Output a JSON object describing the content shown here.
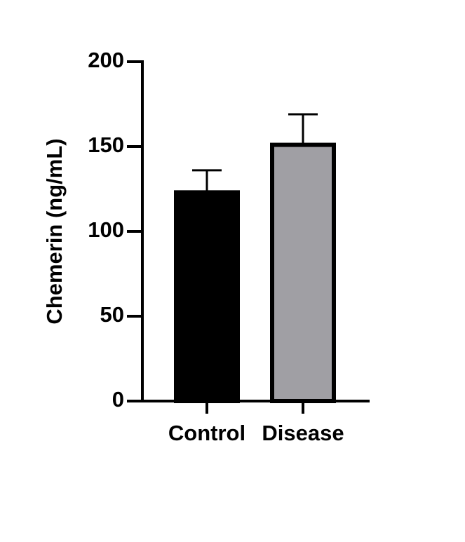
{
  "chart_data": {
    "type": "bar",
    "y_label": "Chemerin (ng/mL)",
    "categories": [
      "Control",
      "Disease"
    ],
    "values": [
      123,
      151
    ],
    "errors": [
      13,
      18
    ],
    "colors": [
      "#000000",
      "#a09fa4"
    ],
    "ylim": [
      0,
      200
    ],
    "yticks": [
      0,
      50,
      100,
      150,
      200
    ]
  }
}
